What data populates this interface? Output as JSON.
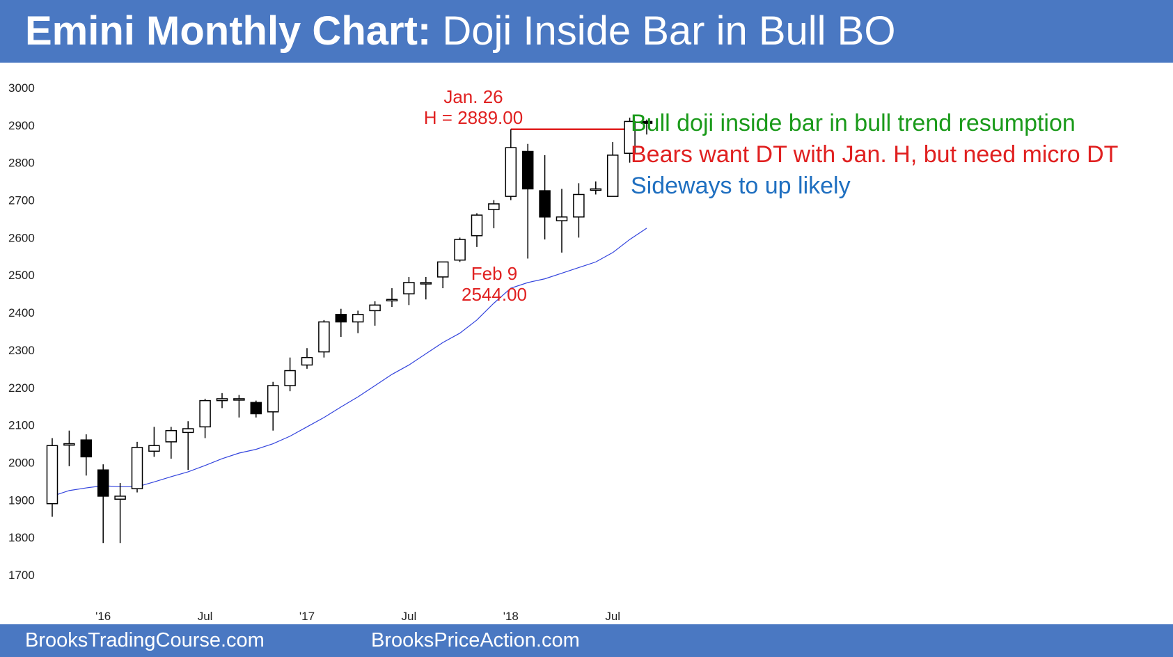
{
  "header": {
    "title_bold": "Emini Monthly Chart:",
    "title_rest": " Doji Inside Bar in Bull BO"
  },
  "footer": {
    "left": "BrooksTradingCourse.com",
    "right": "BrooksPriceAction.com"
  },
  "annotations": {
    "line1": "Bull doji inside bar in bull trend resumption",
    "line2": "Bears want DT with Jan. H, but need micro DT",
    "line3": "Sideways to up likely",
    "high_label_1": "Jan. 26",
    "high_label_2": "H = 2889.00",
    "low_label_1": "Feb 9",
    "low_label_2": "2544.00"
  },
  "colors": {
    "header": "#4a78c2",
    "green": "#1a9a1a",
    "red": "#e02020",
    "blue_text": "#1f6fc0",
    "ma_line": "#3344dd"
  },
  "chart_data": {
    "type": "candlestick",
    "title": "Emini Monthly Chart: Doji Inside Bar in Bull BO",
    "ylim": [
      1650,
      3050
    ],
    "y_ticks": [
      1700,
      1800,
      1900,
      2000,
      2100,
      2200,
      2300,
      2400,
      2500,
      2600,
      2700,
      2800,
      2900,
      3000
    ],
    "x_tick_labels": [
      "'16",
      "Jul",
      "'17",
      "Jul",
      "'18",
      "Jul"
    ],
    "x_tick_index": [
      3,
      9,
      15,
      21,
      27,
      33
    ],
    "grid": false,
    "candles": [
      {
        "o": 1890,
        "h": 2065,
        "l": 1855,
        "c": 2045
      },
      {
        "o": 2050,
        "h": 2085,
        "l": 1990,
        "c": 2050
      },
      {
        "o": 2060,
        "h": 2075,
        "l": 1965,
        "c": 2015
      },
      {
        "o": 1980,
        "h": 1995,
        "l": 1785,
        "c": 1910
      },
      {
        "o": 1902,
        "h": 1945,
        "l": 1785,
        "c": 1910
      },
      {
        "o": 1930,
        "h": 2055,
        "l": 1920,
        "c": 2040
      },
      {
        "o": 2030,
        "h": 2095,
        "l": 2015,
        "c": 2045
      },
      {
        "o": 2055,
        "h": 2095,
        "l": 2010,
        "c": 2085
      },
      {
        "o": 2080,
        "h": 2110,
        "l": 1980,
        "c": 2090
      },
      {
        "o": 2095,
        "h": 2170,
        "l": 2065,
        "c": 2165
      },
      {
        "o": 2165,
        "h": 2185,
        "l": 2145,
        "c": 2170
      },
      {
        "o": 2168,
        "h": 2180,
        "l": 2120,
        "c": 2170
      },
      {
        "o": 2160,
        "h": 2165,
        "l": 2120,
        "c": 2130
      },
      {
        "o": 2135,
        "h": 2215,
        "l": 2085,
        "c": 2205
      },
      {
        "o": 2205,
        "h": 2280,
        "l": 2190,
        "c": 2245
      },
      {
        "o": 2260,
        "h": 2305,
        "l": 2250,
        "c": 2280
      },
      {
        "o": 2295,
        "h": 2380,
        "l": 2280,
        "c": 2375
      },
      {
        "o": 2395,
        "h": 2410,
        "l": 2335,
        "c": 2375
      },
      {
        "o": 2375,
        "h": 2405,
        "l": 2345,
        "c": 2395
      },
      {
        "o": 2405,
        "h": 2430,
        "l": 2365,
        "c": 2420
      },
      {
        "o": 2435,
        "h": 2465,
        "l": 2415,
        "c": 2435
      },
      {
        "o": 2450,
        "h": 2495,
        "l": 2420,
        "c": 2480
      },
      {
        "o": 2480,
        "h": 2495,
        "l": 2435,
        "c": 2480
      },
      {
        "o": 2495,
        "h": 2535,
        "l": 2465,
        "c": 2535
      },
      {
        "o": 2540,
        "h": 2600,
        "l": 2535,
        "c": 2595
      },
      {
        "o": 2605,
        "h": 2665,
        "l": 2575,
        "c": 2660
      },
      {
        "o": 2675,
        "h": 2700,
        "l": 2625,
        "c": 2690
      },
      {
        "o": 2710,
        "h": 2889,
        "l": 2700,
        "c": 2840
      },
      {
        "o": 2830,
        "h": 2850,
        "l": 2544,
        "c": 2730
      },
      {
        "o": 2725,
        "h": 2820,
        "l": 2595,
        "c": 2655
      },
      {
        "o": 2645,
        "h": 2730,
        "l": 2560,
        "c": 2655
      },
      {
        "o": 2655,
        "h": 2745,
        "l": 2600,
        "c": 2715
      },
      {
        "o": 2730,
        "h": 2750,
        "l": 2715,
        "c": 2730
      },
      {
        "o": 2710,
        "h": 2855,
        "l": 2710,
        "c": 2820
      },
      {
        "o": 2825,
        "h": 2920,
        "l": 2800,
        "c": 2910
      },
      {
        "o": 2910,
        "h": 2915,
        "l": 2875,
        "c": 2905
      }
    ],
    "moving_average": [
      1910,
      1925,
      1932,
      1938,
      1935,
      1935,
      1948,
      1962,
      1975,
      1992,
      2010,
      2025,
      2035,
      2050,
      2070,
      2095,
      2120,
      2148,
      2175,
      2205,
      2235,
      2260,
      2290,
      2320,
      2345,
      2380,
      2425,
      2465,
      2480,
      2490,
      2505,
      2520,
      2535,
      2560,
      2595,
      2625
    ],
    "high_line": {
      "value": 2889,
      "from_index": 27,
      "to_index": 34
    },
    "annotations": [
      "Jan. 26 H = 2889.00",
      "Feb 9 2544.00"
    ]
  }
}
